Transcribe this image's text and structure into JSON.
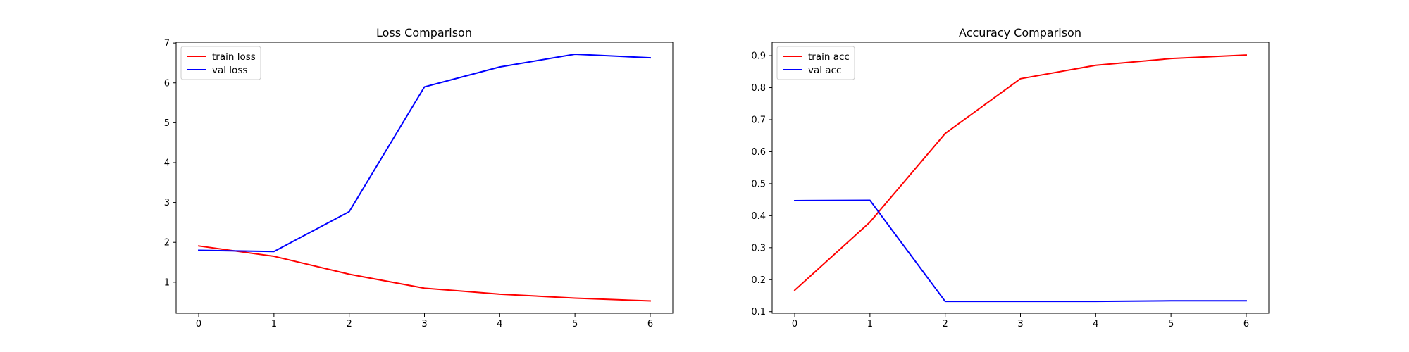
{
  "chart_data": [
    {
      "type": "line",
      "title": "Loss Comparison",
      "xlabel": "",
      "ylabel": "",
      "x": [
        0,
        1,
        2,
        3,
        4,
        5,
        6
      ],
      "xticks": [
        0,
        1,
        2,
        3,
        4,
        5,
        6
      ],
      "yticks": [
        1,
        2,
        3,
        4,
        5,
        6,
        7
      ],
      "xlim": [
        -0.3,
        6.3
      ],
      "ylim": [
        0.22,
        7.02
      ],
      "legend": "upper-left",
      "grid": false,
      "series": [
        {
          "name": "train loss",
          "color": "#ff0000",
          "values": [
            1.91,
            1.65,
            1.2,
            0.85,
            0.7,
            0.6,
            0.53
          ]
        },
        {
          "name": "val loss",
          "color": "#0000ff",
          "values": [
            1.8,
            1.77,
            2.77,
            5.9,
            6.4,
            6.72,
            6.63
          ]
        }
      ]
    },
    {
      "type": "line",
      "title": "Accuracy Comparison",
      "xlabel": "",
      "ylabel": "",
      "x": [
        0,
        1,
        2,
        3,
        4,
        5,
        6
      ],
      "xticks": [
        0,
        1,
        2,
        3,
        4,
        5,
        6
      ],
      "yticks": [
        0.1,
        0.2,
        0.3,
        0.4,
        0.5,
        0.6,
        0.7,
        0.8,
        0.9
      ],
      "xlim": [
        -0.3,
        6.3
      ],
      "ylim": [
        0.095,
        0.942
      ],
      "legend": "upper-left",
      "grid": false,
      "series": [
        {
          "name": "train acc",
          "color": "#ff0000",
          "values": [
            0.167,
            0.38,
            0.657,
            0.828,
            0.87,
            0.891,
            0.902
          ]
        },
        {
          "name": "val acc",
          "color": "#0000ff",
          "values": [
            0.447,
            0.448,
            0.132,
            0.132,
            0.132,
            0.134,
            0.134
          ]
        }
      ]
    }
  ]
}
